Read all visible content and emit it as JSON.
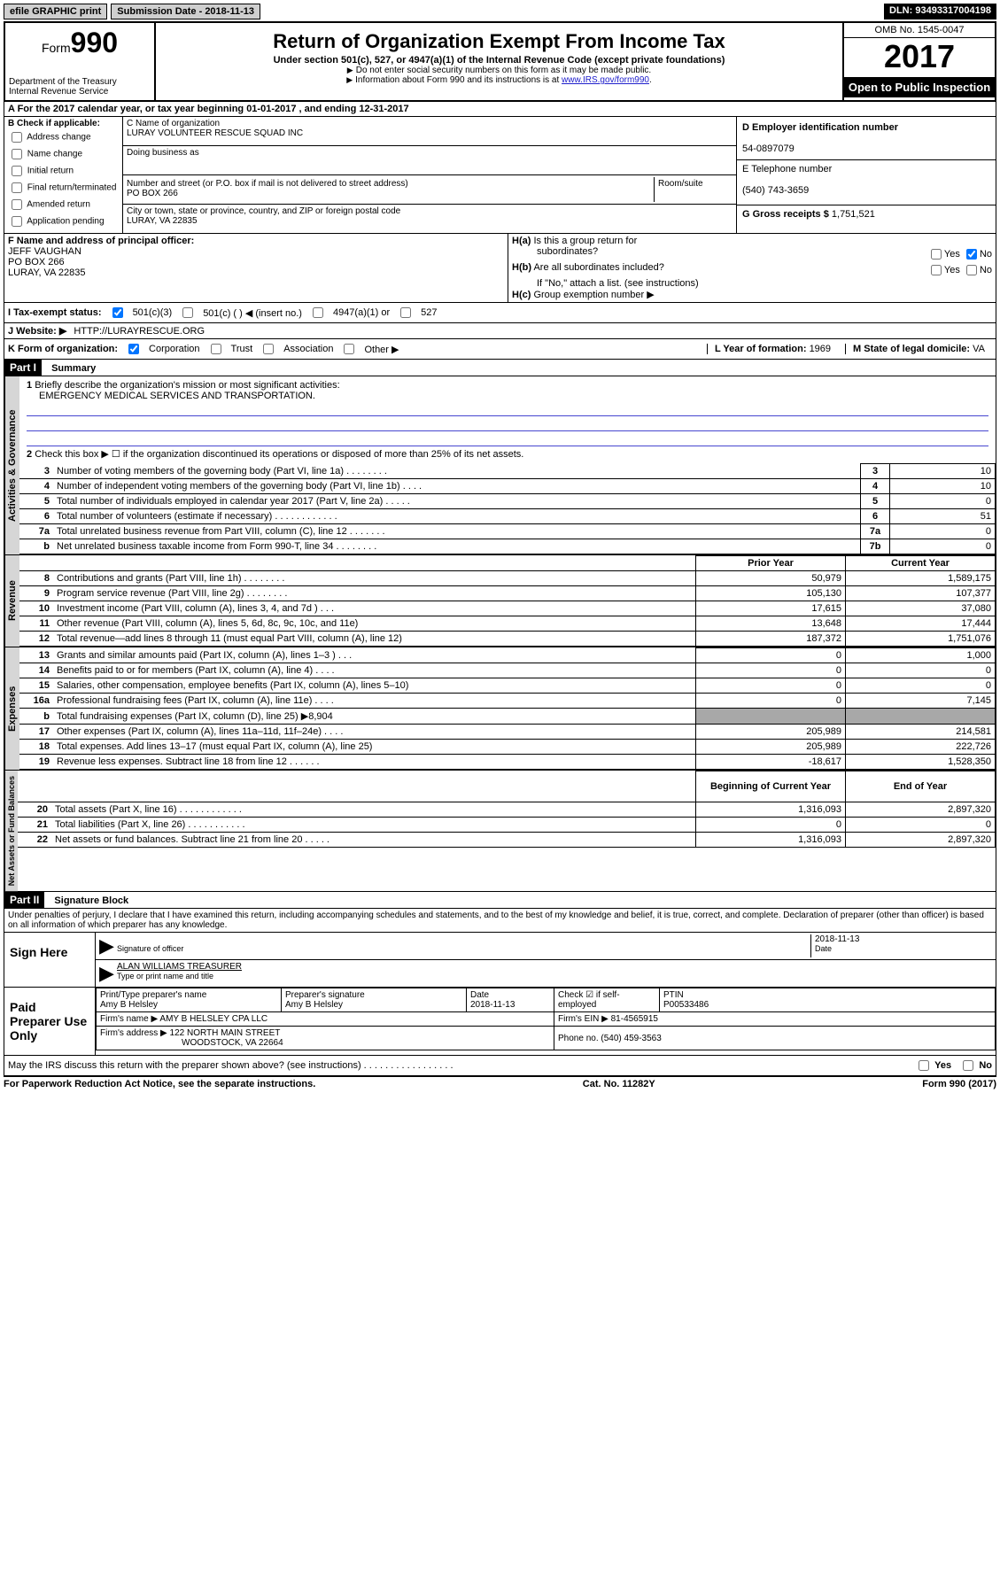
{
  "topbar": {
    "efile": "efile GRAPHIC print",
    "sub_label": "Submission Date - 2018-11-13",
    "dln": "DLN: 93493317004198"
  },
  "header": {
    "form_word": "Form",
    "form_num": "990",
    "dept1": "Department of the Treasury",
    "dept2": "Internal Revenue Service",
    "title": "Return of Organization Exempt From Income Tax",
    "sub": "Under section 501(c), 527, or 4947(a)(1) of the Internal Revenue Code (except private foundations)",
    "note1": "Do not enter social security numbers on this form as it may be made public.",
    "note2_pre": "Information about Form 990 and its instructions is at ",
    "note2_link": "www.IRS.gov/form990",
    "omb": "OMB No. 1545-0047",
    "year": "2017",
    "public": "Open to Public Inspection"
  },
  "rowA": "A  For the 2017 calendar year, or tax year beginning 01-01-2017   , and ending 12-31-2017",
  "colB": {
    "hdr": "B Check if applicable:",
    "opts": [
      "Address change",
      "Name change",
      "Initial return",
      "Final return/terminated",
      "Amended return",
      "Application pending"
    ]
  },
  "colC": {
    "name_lbl": "C Name of organization",
    "name": "LURAY VOLUNTEER RESCUE SQUAD INC",
    "dba_lbl": "Doing business as",
    "addr_lbl": "Number and street (or P.O. box if mail is not delivered to street address)",
    "room_lbl": "Room/suite",
    "addr": "PO BOX 266",
    "city_lbl": "City or town, state or province, country, and ZIP or foreign postal code",
    "city": "LURAY, VA  22835"
  },
  "colD": {
    "ein_lbl": "D Employer identification number",
    "ein": "54-0897079",
    "tel_lbl": "E Telephone number",
    "tel": "(540) 743-3659",
    "gross_lbl": "G Gross receipts $",
    "gross": "1,751,521"
  },
  "colF": {
    "lbl": "F  Name and address of principal officer:",
    "l1": "JEFF VAUGHAN",
    "l2": "PO BOX 266",
    "l3": "LURAY, VA  22835"
  },
  "colH": {
    "a_lbl": "Is this a group return for",
    "a_lbl2": "subordinates?",
    "b_lbl": "Are all subordinates included?",
    "note": "If \"No,\" attach a list. (see instructions)",
    "c_lbl": "Group exemption number ▶",
    "yes": "Yes",
    "no": "No"
  },
  "rowI": {
    "lbl": "I  Tax-exempt status:",
    "c3": "501(c)(3)",
    "c": "501(c) (   ) ◀ (insert no.)",
    "a1": "4947(a)(1) or",
    "s527": "527"
  },
  "rowJ": {
    "lbl": "J  Website: ▶",
    "val": "HTTP://LURAYRESCUE.ORG"
  },
  "rowK": {
    "lbl": "K Form of organization:",
    "opts": [
      "Corporation",
      "Trust",
      "Association",
      "Other ▶"
    ],
    "L_lbl": "L Year of formation:",
    "L_val": "1969",
    "M_lbl": "M State of legal domicile:",
    "M_val": "VA"
  },
  "part1": {
    "hdr": "Part I",
    "title": "Summary",
    "gov_label": "Activities & Governance",
    "rev_label": "Revenue",
    "exp_label": "Expenses",
    "net_label": "Net Assets or Fund Balances",
    "l1_lbl": "Briefly describe the organization's mission or most significant activities:",
    "l1_val": "EMERGENCY MEDICAL SERVICES AND TRANSPORTATION.",
    "l2": "Check this box ▶ ☐  if the organization discontinued its operations or disposed of more than 25% of its net assets.",
    "rows_gov": [
      {
        "n": "3",
        "t": "Number of voting members of the governing body (Part VI, line 1a)  .   .   .   .   .   .   .   .",
        "v": "10"
      },
      {
        "n": "4",
        "t": "Number of independent voting members of the governing body (Part VI, line 1b)   .   .   .   .",
        "v": "10"
      },
      {
        "n": "5",
        "t": "Total number of individuals employed in calendar year 2017 (Part V, line 2a)   .   .   .   .   .",
        "v": "0"
      },
      {
        "n": "6",
        "t": "Total number of volunteers (estimate if necessary)   .   .   .   .   .   .   .   .   .   .   .   .",
        "v": "51"
      },
      {
        "n": "7a",
        "t": "Total unrelated business revenue from Part VIII, column (C), line 12  .   .   .   .   .   .   .",
        "v": "0"
      },
      {
        "n": "7b",
        "t": "Net unrelated business taxable income from Form 990-T, line 34   .   .   .   .   .   .   .   .",
        "v": "0",
        "prefix": "b"
      }
    ],
    "col_prior": "Prior Year",
    "col_curr": "Current Year",
    "rows_rev": [
      {
        "n": "8",
        "t": "Contributions and grants (Part VIII, line 1h)   .   .   .   .   .   .   .   .",
        "p": "50,979",
        "c": "1,589,175"
      },
      {
        "n": "9",
        "t": "Program service revenue (Part VIII, line 2g)   .   .   .   .   .   .   .   .",
        "p": "105,130",
        "c": "107,377"
      },
      {
        "n": "10",
        "t": "Investment income (Part VIII, column (A), lines 3, 4, and 7d )   .   .   .",
        "p": "17,615",
        "c": "37,080"
      },
      {
        "n": "11",
        "t": "Other revenue (Part VIII, column (A), lines 5, 6d, 8c, 9c, 10c, and 11e)",
        "p": "13,648",
        "c": "17,444"
      },
      {
        "n": "12",
        "t": "Total revenue—add lines 8 through 11 (must equal Part VIII, column (A), line 12)",
        "p": "187,372",
        "c": "1,751,076"
      }
    ],
    "rows_exp": [
      {
        "n": "13",
        "t": "Grants and similar amounts paid (Part IX, column (A), lines 1–3 )  .   .   .",
        "p": "0",
        "c": "1,000"
      },
      {
        "n": "14",
        "t": "Benefits paid to or for members (Part IX, column (A), line 4)  .   .   .   .",
        "p": "0",
        "c": "0"
      },
      {
        "n": "15",
        "t": "Salaries, other compensation, employee benefits (Part IX, column (A), lines 5–10)",
        "p": "0",
        "c": "0"
      },
      {
        "n": "16a",
        "t": "Professional fundraising fees (Part IX, column (A), line 11e)   .   .   .   .",
        "p": "0",
        "c": "7,145"
      },
      {
        "n": "b",
        "t": "Total fundraising expenses (Part IX, column (D), line 25) ▶8,904",
        "grey": true
      },
      {
        "n": "17",
        "t": "Other expenses (Part IX, column (A), lines 11a–11d, 11f–24e)   .   .   .   .",
        "p": "205,989",
        "c": "214,581"
      },
      {
        "n": "18",
        "t": "Total expenses. Add lines 13–17 (must equal Part IX, column (A), line 25)",
        "p": "205,989",
        "c": "222,726"
      },
      {
        "n": "19",
        "t": "Revenue less expenses. Subtract line 18 from line 12  .   .   .   .   .   .",
        "p": "-18,617",
        "c": "1,528,350"
      }
    ],
    "col_beg": "Beginning of Current Year",
    "col_end": "End of Year",
    "rows_net": [
      {
        "n": "20",
        "t": "Total assets (Part X, line 16)   .   .   .   .   .   .   .   .   .   .   .   .",
        "p": "1,316,093",
        "c": "2,897,320"
      },
      {
        "n": "21",
        "t": "Total liabilities (Part X, line 26)  .   .   .   .   .   .   .   .   .   .   .",
        "p": "0",
        "c": "0"
      },
      {
        "n": "22",
        "t": "Net assets or fund balances. Subtract line 21 from line 20 .   .   .   .   .",
        "p": "1,316,093",
        "c": "2,897,320"
      }
    ]
  },
  "part2": {
    "hdr": "Part II",
    "title": "Signature Block",
    "perjury": "Under penalties of perjury, I declare that I have examined this return, including accompanying schedules and statements, and to the best of my knowledge and belief, it is true, correct, and complete. Declaration of preparer (other than officer) is based on all information of which preparer has any knowledge.",
    "sign_here": "Sign Here",
    "sig_lbl": "Signature of officer",
    "date_lbl": "Date",
    "date_val": "2018-11-13",
    "name_val": "ALAN WILLIAMS TREASURER",
    "name_lbl": "Type or print name and title",
    "paid": "Paid Preparer Use Only",
    "prep_name_lbl": "Print/Type preparer's name",
    "prep_name": "Amy B Helsley",
    "prep_sig_lbl": "Preparer's signature",
    "prep_sig": "Amy B Helsley",
    "prep_date_lbl": "Date",
    "prep_date": "2018-11-13",
    "self_lbl": "Check ☑ if self-employed",
    "ptin_lbl": "PTIN",
    "ptin": "P00533486",
    "firm_name_lbl": "Firm's name    ▶",
    "firm_name": "AMY B HELSLEY CPA LLC",
    "firm_ein_lbl": "Firm's EIN ▶",
    "firm_ein": "81-4565915",
    "firm_addr_lbl": "Firm's address ▶",
    "firm_addr1": "122 NORTH MAIN STREET",
    "firm_addr2": "WOODSTOCK, VA  22664",
    "phone_lbl": "Phone no.",
    "phone": "(540) 459-3563",
    "discuss": "May the IRS discuss this return with the preparer shown above? (see instructions)   .   .   .   .   .   .   .   .   .   .   .   .   .   .   .   .   ."
  },
  "footer": {
    "pra": "For Paperwork Reduction Act Notice, see the separate instructions.",
    "cat": "Cat. No. 11282Y",
    "form": "Form 990 (2017)"
  }
}
